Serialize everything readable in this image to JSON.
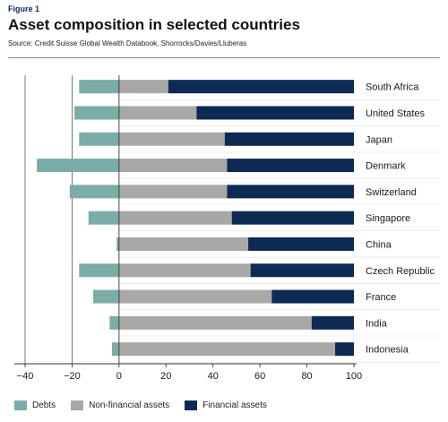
{
  "figure_label": "Figure 1",
  "title": "Asset composition in selected countries",
  "source": "Source: Credit Suisse Global Wealth Databook, Shorrocks/Davies/Lluberas",
  "colors": {
    "debts": "#7aada8",
    "non_financial": "#a8a8a6",
    "financial": "#0c2a54",
    "axis": "#333333"
  },
  "legend": [
    {
      "label": "Debts",
      "color": "#7aada8"
    },
    {
      "label": "Non-financial assets",
      "color": "#a8a8a6"
    },
    {
      "label": "Financial assets",
      "color": "#0c2a54"
    }
  ],
  "chart_data": {
    "type": "bar",
    "orientation": "horizontal",
    "stacked": true,
    "xlim": [
      -40,
      100
    ],
    "xticks": [
      -40,
      -20,
      0,
      20,
      40,
      60,
      80,
      100
    ],
    "xtick_labels": [
      "−40",
      "−20",
      "0",
      "20",
      "40",
      "60",
      "80",
      "100"
    ],
    "categories": [
      "South Africa",
      "United States",
      "Japan",
      "Denmark",
      "Switzerland",
      "Singapore",
      "China",
      "Czech Republic",
      "France",
      "India",
      "Indonesia"
    ],
    "series": [
      {
        "name": "Debts",
        "values": [
          -17,
          -19,
          -17,
          -35,
          -21,
          -13,
          -1,
          -17,
          -11,
          -4,
          -3
        ]
      },
      {
        "name": "Non-financial assets",
        "values": [
          21,
          33,
          45,
          46,
          46,
          48,
          55,
          56,
          65,
          82,
          92
        ]
      },
      {
        "name": "Financial assets",
        "values": [
          79,
          67,
          55,
          54,
          54,
          52,
          45,
          44,
          35,
          18,
          8
        ]
      }
    ],
    "grid": "vertical lines at -40 and -20",
    "legend_position": "bottom"
  }
}
